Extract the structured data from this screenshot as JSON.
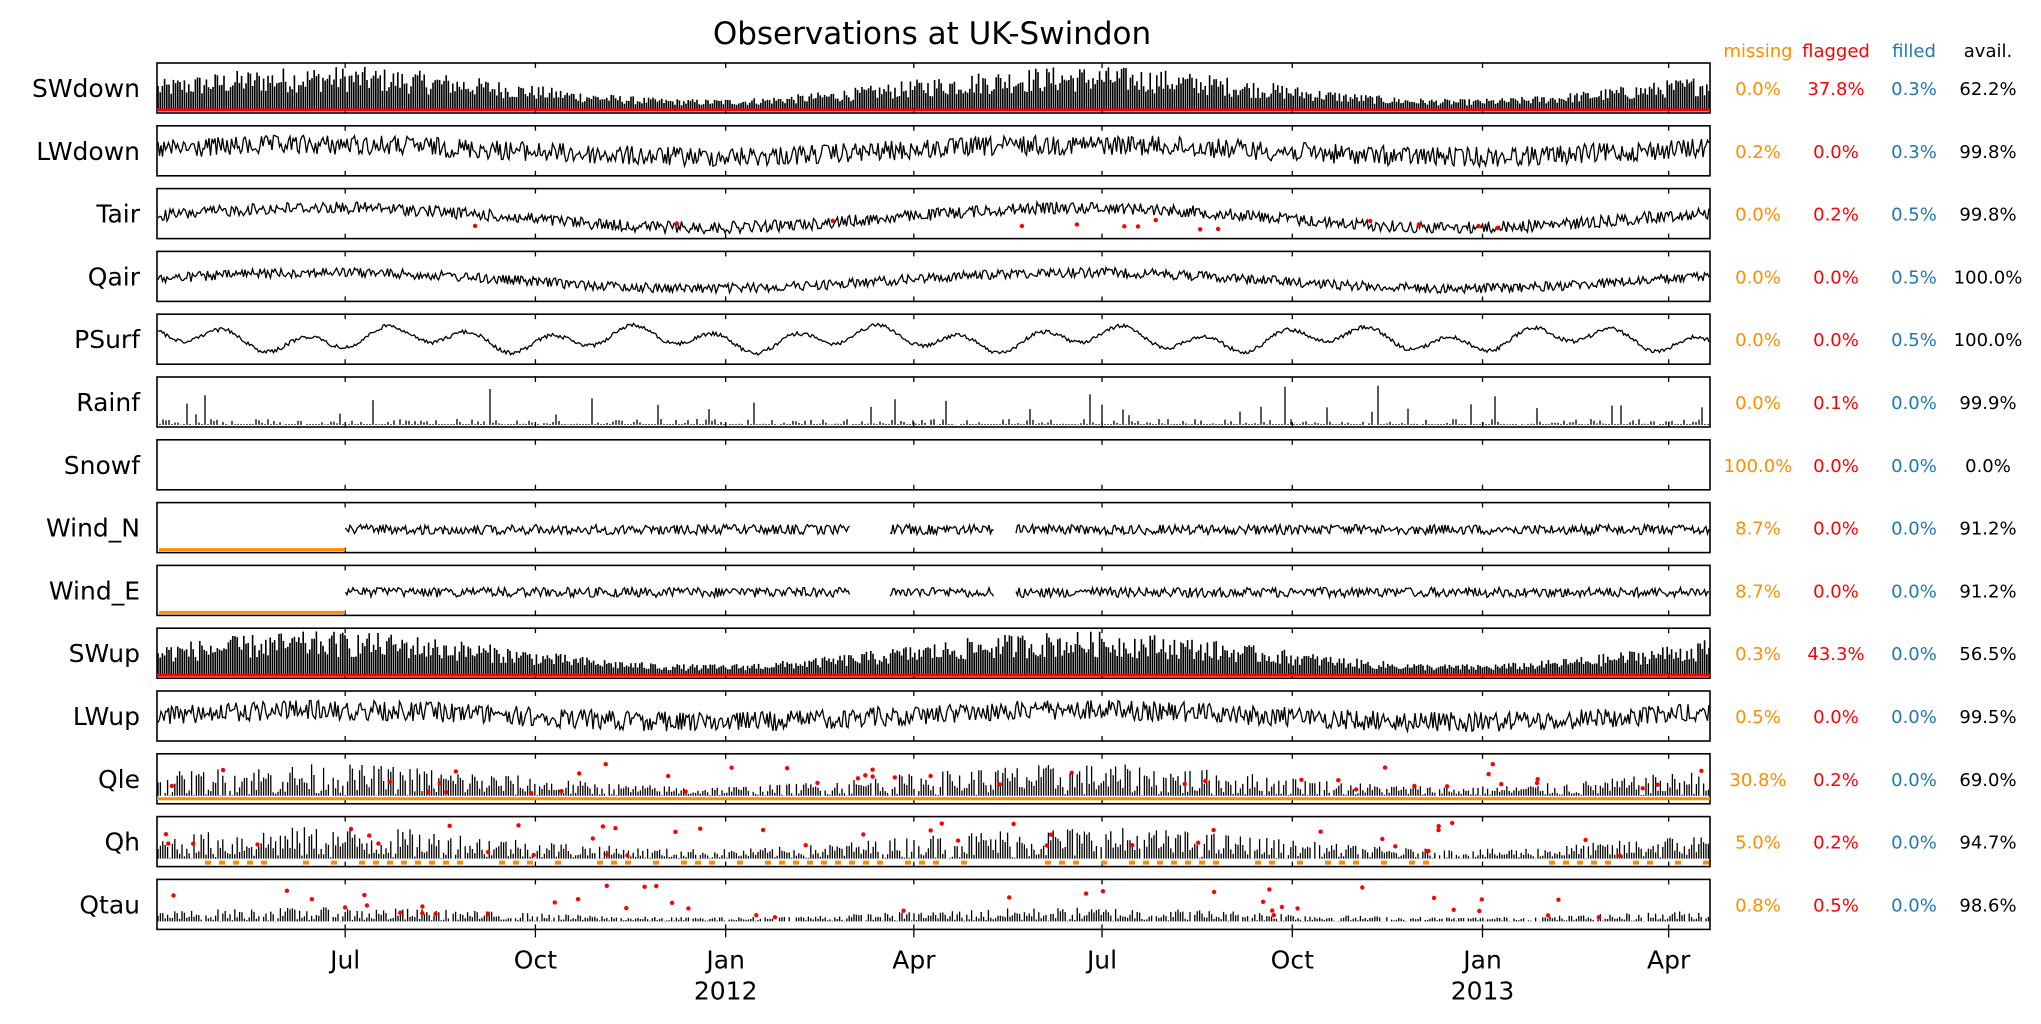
{
  "chart_data": {
    "type": "line",
    "title": "Observations at UK-Swindon",
    "xaxis": {
      "start": "2011-04-01",
      "end": "2013-04-21",
      "ticks": [
        {
          "date": "2011-07-01",
          "label": "Jul",
          "sublabel": ""
        },
        {
          "date": "2011-10-01",
          "label": "Oct",
          "sublabel": ""
        },
        {
          "date": "2012-01-01",
          "label": "Jan",
          "sublabel": "2012"
        },
        {
          "date": "2012-04-01",
          "label": "Apr",
          "sublabel": ""
        },
        {
          "date": "2012-07-01",
          "label": "Jul",
          "sublabel": ""
        },
        {
          "date": "2012-10-01",
          "label": "Oct",
          "sublabel": ""
        },
        {
          "date": "2013-01-01",
          "label": "Jan",
          "sublabel": "2013"
        },
        {
          "date": "2013-04-01",
          "label": "Apr",
          "sublabel": ""
        }
      ]
    },
    "columns": [
      {
        "key": "missing",
        "label": "missing",
        "color": "#ff8c00"
      },
      {
        "key": "flagged",
        "label": "flagged",
        "color": "#ff0000"
      },
      {
        "key": "filled",
        "label": "filled",
        "color": "#1f77b4"
      },
      {
        "key": "avail",
        "label": "avail.",
        "color": "#000000"
      }
    ],
    "series": [
      {
        "name": "SWdown",
        "missing": "0.0%",
        "flagged": "37.8%",
        "filled": "0.3%",
        "avail": "62.2%"
      },
      {
        "name": "LWdown",
        "missing": "0.2%",
        "flagged": "0.0%",
        "filled": "0.3%",
        "avail": "99.8%"
      },
      {
        "name": "Tair",
        "missing": "0.0%",
        "flagged": "0.2%",
        "filled": "0.5%",
        "avail": "99.8%"
      },
      {
        "name": "Qair",
        "missing": "0.0%",
        "flagged": "0.0%",
        "filled": "0.5%",
        "avail": "100.0%"
      },
      {
        "name": "PSurf",
        "missing": "0.0%",
        "flagged": "0.0%",
        "filled": "0.5%",
        "avail": "100.0%"
      },
      {
        "name": "Rainf",
        "missing": "0.0%",
        "flagged": "0.1%",
        "filled": "0.0%",
        "avail": "99.9%"
      },
      {
        "name": "Snowf",
        "missing": "100.0%",
        "flagged": "0.0%",
        "filled": "0.0%",
        "avail": "0.0%"
      },
      {
        "name": "Wind_N",
        "missing": "8.7%",
        "flagged": "0.0%",
        "filled": "0.0%",
        "avail": "91.2%"
      },
      {
        "name": "Wind_E",
        "missing": "8.7%",
        "flagged": "0.0%",
        "filled": "0.0%",
        "avail": "91.2%"
      },
      {
        "name": "SWup",
        "missing": "0.3%",
        "flagged": "43.3%",
        "filled": "0.0%",
        "avail": "56.5%"
      },
      {
        "name": "LWup",
        "missing": "0.5%",
        "flagged": "0.0%",
        "filled": "0.0%",
        "avail": "99.5%"
      },
      {
        "name": "Qle",
        "missing": "30.8%",
        "flagged": "0.2%",
        "filled": "0.0%",
        "avail": "69.0%"
      },
      {
        "name": "Qh",
        "missing": "5.0%",
        "flagged": "0.2%",
        "filled": "0.0%",
        "avail": "94.7%"
      },
      {
        "name": "Qtau",
        "missing": "0.8%",
        "flagged": "0.5%",
        "filled": "0.0%",
        "avail": "98.6%"
      }
    ]
  }
}
